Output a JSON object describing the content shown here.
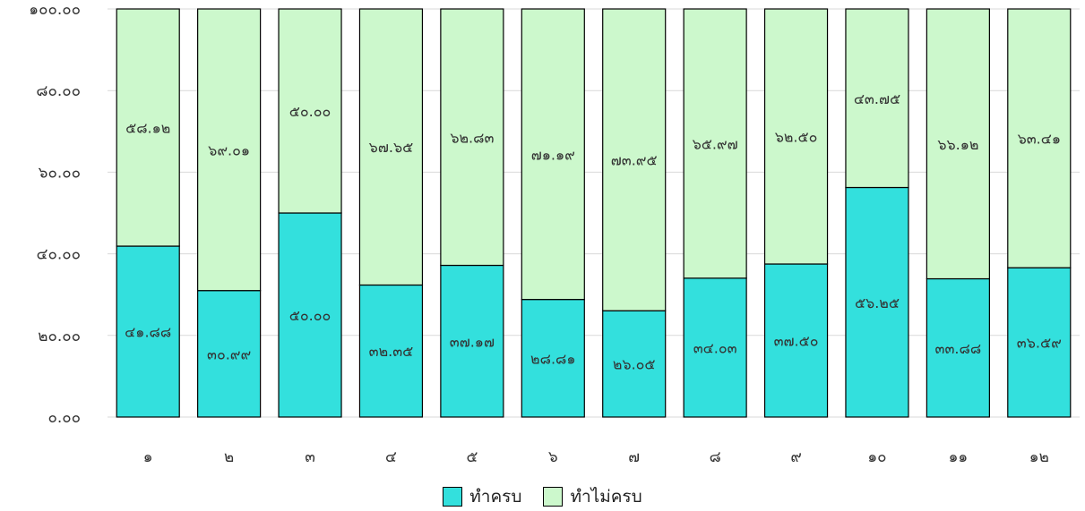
{
  "chart_data": {
    "type": "bar",
    "stacked": true,
    "categories": [
      "๑",
      "๒",
      "๓",
      "๔",
      "๕",
      "๖",
      "๗",
      "๘",
      "๙",
      "๑๐",
      "๑๑",
      "๑๒"
    ],
    "series": [
      {
        "name": "ทำครบ",
        "color": "#33E0DD",
        "values": [
          41.88,
          30.99,
          50.0,
          32.35,
          37.17,
          28.81,
          26.05,
          34.03,
          37.5,
          56.25,
          33.88,
          36.59
        ],
        "labels": [
          "๔๑.๘๘",
          "๓๐.๙๙",
          "๕๐.๐๐",
          "๓๒.๓๕",
          "๓๗.๑๗",
          "๒๘.๘๑",
          "๒๖.๐๕",
          "๓๔.๐๓",
          "๓๗.๕๐",
          "๕๖.๒๕",
          "๓๓.๘๘",
          "๓๖.๕๙"
        ]
      },
      {
        "name": "ทำไม่ครบ",
        "color": "#CCF8CC",
        "values": [
          58.12,
          69.01,
          50.0,
          67.65,
          62.83,
          71.19,
          73.95,
          65.97,
          62.5,
          43.75,
          66.12,
          63.41
        ],
        "labels": [
          "๕๘.๑๒",
          "๖๙.๐๑",
          "๕๐.๐๐",
          "๖๗.๖๕",
          "๖๒.๘๓",
          "๗๑.๑๙",
          "๗๓.๙๕",
          "๖๕.๙๗",
          "๖๒.๕๐",
          "๔๓.๗๕",
          "๖๖.๑๒",
          "๖๓.๔๑"
        ]
      }
    ],
    "ylim": [
      0,
      100
    ],
    "yticks": [
      0,
      20,
      40,
      60,
      80,
      100
    ],
    "ytick_labels": [
      "๐.๐๐",
      "๒๐.๐๐",
      "๔๐.๐๐",
      "๖๐.๐๐",
      "๘๐.๐๐",
      "๑๐๐.๐๐"
    ],
    "grid": true,
    "legend_position": "bottom"
  },
  "legend": {
    "items": [
      {
        "label": "ทำครบ",
        "color": "#33E0DD"
      },
      {
        "label": "ทำไม่ครบ",
        "color": "#CCF8CC"
      }
    ]
  }
}
